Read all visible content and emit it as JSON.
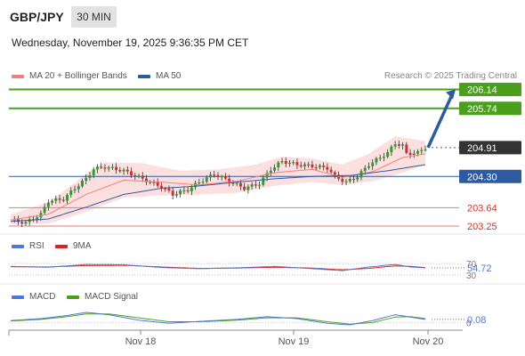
{
  "header": {
    "symbol": "GBP/JPY",
    "timeframe": "30 MIN",
    "datetime": "Wednesday, November 19, 2025 9:36:35 PM CET"
  },
  "legends": {
    "main": [
      {
        "label": "MA 20 + Bollinger Bands",
        "color": "#f08080"
      },
      {
        "label": "MA 50",
        "color": "#2e5aa0"
      }
    ],
    "rsi": [
      {
        "label": "RSI",
        "color": "#4f79d6"
      },
      {
        "label": "9MA",
        "color": "#e0201c"
      }
    ],
    "macd": [
      {
        "label": "MACD",
        "color": "#4f79d6"
      },
      {
        "label": "MACD Signal",
        "color": "#4aa01c"
      }
    ]
  },
  "credit": "Research © 2025 Trading Central",
  "colors": {
    "resistance": "#4aa01c",
    "pivot": "#2e5aa0",
    "support": "#e07b7b",
    "current": "#333333",
    "arrow": "#2e5aa0",
    "candle_up": "#2e9b2e",
    "candle_down": "#d0312d",
    "band_fill": "#fbd6d6"
  },
  "chart_data": [
    {
      "type": "candlestick",
      "title": "GBP/JPY",
      "timeframe": "30 MIN",
      "x_tick_labels": [
        "Nov 18",
        "Nov 19",
        "Nov 20"
      ],
      "ylim": [
        203.1,
        206.3
      ],
      "levels": [
        {
          "label": "206.14",
          "value": 206.14,
          "kind": "resistance"
        },
        {
          "label": "205.74",
          "value": 205.74,
          "kind": "resistance"
        },
        {
          "label": "204.91",
          "value": 204.91,
          "kind": "last"
        },
        {
          "label": "204.30",
          "value": 204.3,
          "kind": "pivot"
        },
        {
          "label": "203.64",
          "value": 203.64,
          "kind": "support"
        },
        {
          "label": "203.25",
          "value": 203.25,
          "kind": "support"
        }
      ],
      "projection": {
        "from": 204.91,
        "to": 206.14,
        "direction": "up"
      },
      "price_path": [
        [
          0,
          203.37
        ],
        [
          4,
          203.32
        ],
        [
          8,
          203.5
        ],
        [
          10,
          203.78
        ],
        [
          14,
          203.82
        ],
        [
          17,
          204.05
        ],
        [
          20,
          204.25
        ],
        [
          22,
          204.46
        ],
        [
          25,
          204.5
        ],
        [
          30,
          204.42
        ],
        [
          35,
          204.25
        ],
        [
          40,
          204.08
        ],
        [
          43,
          203.92
        ],
        [
          47,
          204.02
        ],
        [
          50,
          204.18
        ],
        [
          54,
          204.35
        ],
        [
          58,
          204.2
        ],
        [
          62,
          204.05
        ],
        [
          66,
          204.15
        ],
        [
          69,
          204.45
        ],
        [
          72,
          204.62
        ],
        [
          76,
          204.55
        ],
        [
          80,
          204.52
        ],
        [
          84,
          204.48
        ],
        [
          86,
          204.3
        ],
        [
          89,
          204.18
        ],
        [
          92,
          204.3
        ],
        [
          95,
          204.55
        ],
        [
          98,
          204.7
        ],
        [
          100,
          204.8
        ],
        [
          102,
          205.0
        ],
        [
          104,
          204.95
        ],
        [
          105,
          204.78
        ],
        [
          108,
          204.8
        ],
        [
          110,
          204.91
        ]
      ],
      "ma20_path": [
        [
          0,
          203.38
        ],
        [
          10,
          203.5
        ],
        [
          20,
          203.92
        ],
        [
          30,
          204.22
        ],
        [
          40,
          204.18
        ],
        [
          50,
          204.12
        ],
        [
          60,
          204.2
        ],
        [
          70,
          204.38
        ],
        [
          80,
          204.45
        ],
        [
          88,
          204.28
        ],
        [
          96,
          204.4
        ],
        [
          104,
          204.7
        ],
        [
          110,
          204.78
        ]
      ],
      "ma50_path": [
        [
          0,
          203.35
        ],
        [
          10,
          203.4
        ],
        [
          20,
          203.65
        ],
        [
          30,
          203.92
        ],
        [
          40,
          204.05
        ],
        [
          50,
          204.1
        ],
        [
          60,
          204.18
        ],
        [
          70,
          204.25
        ],
        [
          80,
          204.3
        ],
        [
          90,
          204.32
        ],
        [
          100,
          204.42
        ],
        [
          110,
          204.55
        ]
      ],
      "band_upper": [
        [
          0,
          203.5
        ],
        [
          10,
          203.75
        ],
        [
          20,
          204.35
        ],
        [
          25,
          204.6
        ],
        [
          35,
          204.58
        ],
        [
          45,
          204.42
        ],
        [
          55,
          204.45
        ],
        [
          65,
          204.55
        ],
        [
          72,
          204.72
        ],
        [
          80,
          204.68
        ],
        [
          88,
          204.55
        ],
        [
          95,
          204.78
        ],
        [
          102,
          205.15
        ],
        [
          110,
          205.05
        ]
      ],
      "band_lower": [
        [
          0,
          203.28
        ],
        [
          10,
          203.3
        ],
        [
          20,
          203.55
        ],
        [
          30,
          203.85
        ],
        [
          40,
          203.9
        ],
        [
          50,
          203.92
        ],
        [
          60,
          203.95
        ],
        [
          70,
          204.1
        ],
        [
          80,
          204.18
        ],
        [
          88,
          204.12
        ],
        [
          96,
          204.2
        ],
        [
          104,
          204.38
        ],
        [
          110,
          204.55
        ]
      ]
    },
    {
      "type": "line",
      "title": "RSI",
      "value_label": "54.72",
      "tick_labels": [
        "70",
        "30"
      ],
      "ylim": [
        20,
        80
      ],
      "rsi_path": [
        [
          0,
          60
        ],
        [
          10,
          57
        ],
        [
          20,
          67
        ],
        [
          30,
          66
        ],
        [
          40,
          56
        ],
        [
          50,
          52
        ],
        [
          60,
          55
        ],
        [
          70,
          60
        ],
        [
          80,
          52
        ],
        [
          88,
          45
        ],
        [
          95,
          58
        ],
        [
          102,
          67
        ],
        [
          106,
          58
        ],
        [
          110,
          54.72
        ]
      ],
      "ma_path": [
        [
          0,
          59
        ],
        [
          10,
          58
        ],
        [
          20,
          63
        ],
        [
          30,
          64
        ],
        [
          40,
          58
        ],
        [
          50,
          53
        ],
        [
          60,
          54
        ],
        [
          70,
          57
        ],
        [
          80,
          54
        ],
        [
          88,
          48
        ],
        [
          95,
          53
        ],
        [
          102,
          62
        ],
        [
          106,
          60
        ],
        [
          110,
          56
        ]
      ]
    },
    {
      "type": "line",
      "title": "MACD",
      "value_label": "0.08",
      "tick_labels": [
        "0"
      ],
      "ylim": [
        -0.15,
        0.35
      ],
      "macd_path": [
        [
          0,
          0.05
        ],
        [
          8,
          0.1
        ],
        [
          15,
          0.18
        ],
        [
          20,
          0.26
        ],
        [
          26,
          0.2
        ],
        [
          34,
          0.06
        ],
        [
          42,
          -0.02
        ],
        [
          50,
          0.03
        ],
        [
          60,
          0.08
        ],
        [
          68,
          0.15
        ],
        [
          76,
          0.1
        ],
        [
          84,
          -0.02
        ],
        [
          90,
          -0.06
        ],
        [
          96,
          0.05
        ],
        [
          102,
          0.2
        ],
        [
          106,
          0.14
        ],
        [
          110,
          0.08
        ]
      ],
      "signal_path": [
        [
          0,
          0.04
        ],
        [
          8,
          0.08
        ],
        [
          15,
          0.15
        ],
        [
          20,
          0.22
        ],
        [
          26,
          0.22
        ],
        [
          34,
          0.12
        ],
        [
          42,
          0.02
        ],
        [
          50,
          0.02
        ],
        [
          60,
          0.06
        ],
        [
          68,
          0.12
        ],
        [
          76,
          0.12
        ],
        [
          84,
          0.02
        ],
        [
          90,
          -0.04
        ],
        [
          96,
          0.0
        ],
        [
          102,
          0.14
        ],
        [
          106,
          0.15
        ],
        [
          110,
          0.1
        ]
      ]
    }
  ]
}
